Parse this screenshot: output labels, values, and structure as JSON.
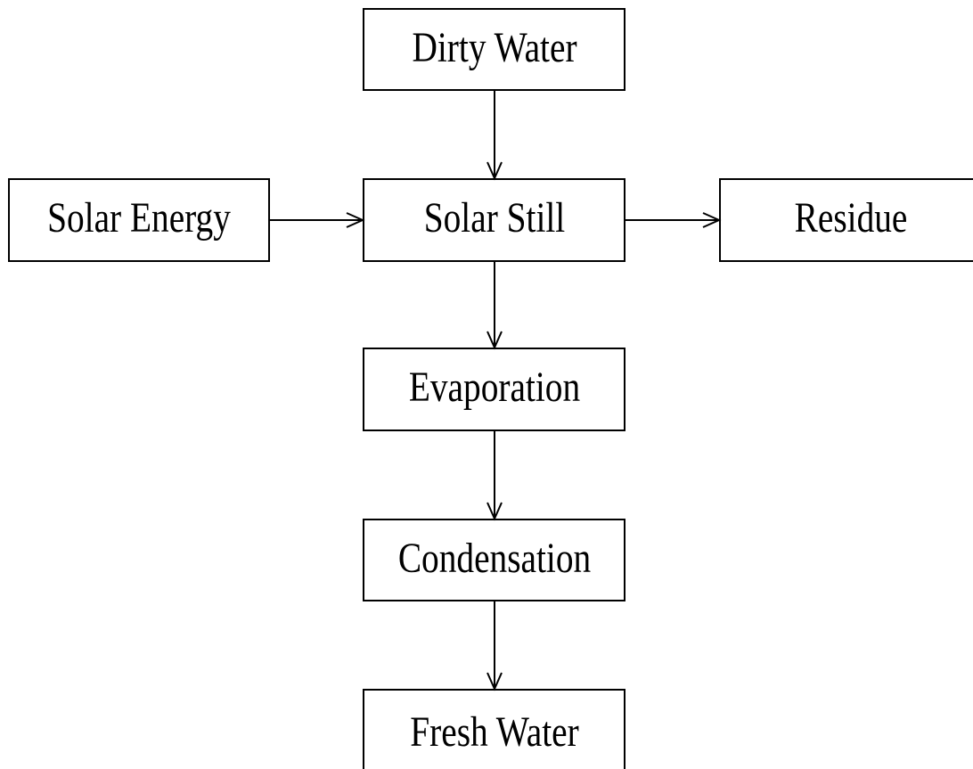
{
  "nodes": [
    {
      "label": "Dirty Water"
    },
    {
      "label": "Solar Energy"
    },
    {
      "label": "Solar Still"
    },
    {
      "label": "Residue"
    },
    {
      "label": "Evaporation"
    },
    {
      "label": "Condensation"
    },
    {
      "label": "Fresh Water"
    }
  ]
}
